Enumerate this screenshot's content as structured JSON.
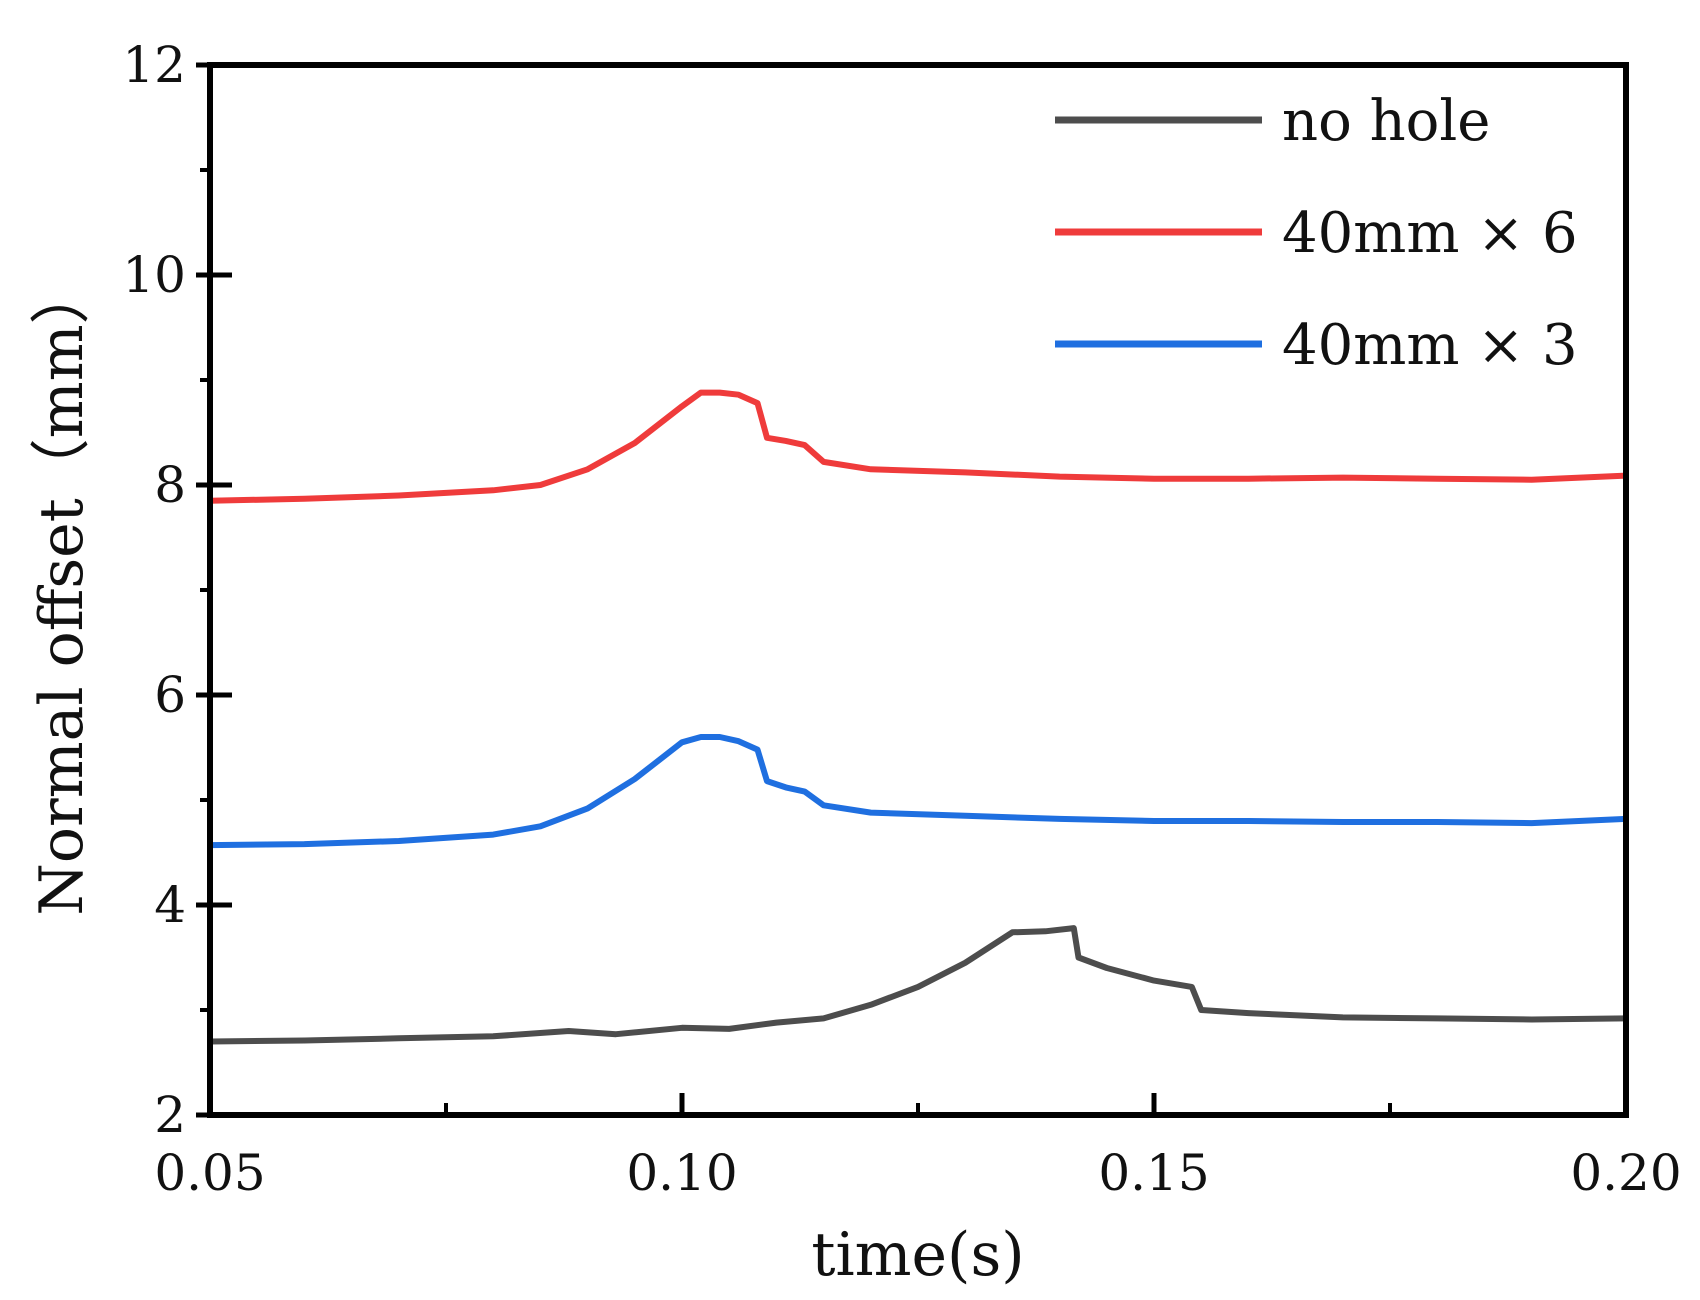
{
  "chart_data": {
    "type": "line",
    "title": "",
    "xlabel": "time(s)",
    "ylabel": "Normal offset（mm）",
    "xlim": [
      0.05,
      0.2
    ],
    "ylim": [
      2,
      12
    ],
    "xticks": [
      0.05,
      0.1,
      0.15,
      0.2
    ],
    "xtick_labels": [
      "0.05",
      "0.10",
      "0.15",
      "0.20"
    ],
    "yticks": [
      2,
      4,
      6,
      8,
      10,
      12
    ],
    "ytick_labels": [
      "2",
      "4",
      "6",
      "8",
      "10",
      "12"
    ],
    "grid": false,
    "legend_position": "top-right",
    "series": [
      {
        "name": "no hole",
        "color": "#4d4d4d",
        "x": [
          0.05,
          0.06,
          0.07,
          0.08,
          0.088,
          0.093,
          0.1,
          0.105,
          0.11,
          0.115,
          0.12,
          0.125,
          0.13,
          0.135,
          0.1385,
          0.1415,
          0.142,
          0.145,
          0.15,
          0.154,
          0.155,
          0.16,
          0.17,
          0.18,
          0.19,
          0.2
        ],
        "y": [
          2.7,
          2.71,
          2.73,
          2.75,
          2.8,
          2.77,
          2.83,
          2.82,
          2.88,
          2.92,
          3.05,
          3.22,
          3.45,
          3.74,
          3.75,
          3.78,
          3.5,
          3.4,
          3.28,
          3.22,
          3.0,
          2.97,
          2.93,
          2.92,
          2.91,
          2.92
        ]
      },
      {
        "name": "40mm × 6",
        "color": "#ef3b3b",
        "x": [
          0.05,
          0.06,
          0.07,
          0.08,
          0.085,
          0.09,
          0.095,
          0.1,
          0.102,
          0.104,
          0.106,
          0.108,
          0.109,
          0.111,
          0.113,
          0.115,
          0.12,
          0.13,
          0.14,
          0.15,
          0.16,
          0.17,
          0.18,
          0.19,
          0.2
        ],
        "y": [
          7.85,
          7.87,
          7.9,
          7.95,
          8.0,
          8.15,
          8.4,
          8.75,
          8.88,
          8.88,
          8.86,
          8.78,
          8.45,
          8.42,
          8.38,
          8.22,
          8.15,
          8.12,
          8.08,
          8.06,
          8.06,
          8.07,
          8.06,
          8.05,
          8.09
        ]
      },
      {
        "name": "40mm × 3",
        "color": "#1f6fe0",
        "x": [
          0.05,
          0.06,
          0.07,
          0.08,
          0.085,
          0.09,
          0.095,
          0.1,
          0.102,
          0.104,
          0.106,
          0.108,
          0.109,
          0.111,
          0.113,
          0.115,
          0.12,
          0.13,
          0.14,
          0.15,
          0.16,
          0.17,
          0.18,
          0.19,
          0.2
        ],
        "y": [
          4.57,
          4.58,
          4.61,
          4.67,
          4.75,
          4.92,
          5.2,
          5.55,
          5.6,
          5.6,
          5.56,
          5.48,
          5.18,
          5.12,
          5.08,
          4.95,
          4.88,
          4.85,
          4.82,
          4.8,
          4.8,
          4.79,
          4.79,
          4.78,
          4.82
        ]
      }
    ]
  }
}
